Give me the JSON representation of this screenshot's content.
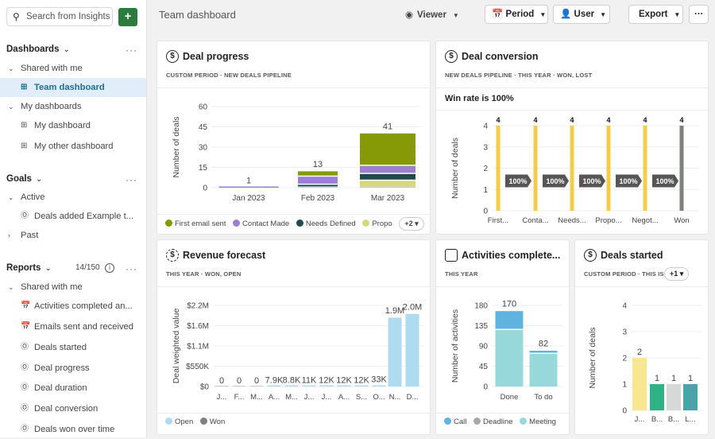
{
  "sidebar": {
    "search_placeholder": "Search from Insights",
    "add_label": "+",
    "dashboards": {
      "title": "Dashboards",
      "groups": [
        {
          "label": "Shared with me",
          "items": [
            "Team dashboard"
          ]
        },
        {
          "label": "My dashboards",
          "items": [
            "My dashboard",
            "My other dashboard"
          ]
        }
      ],
      "selected": "Team dashboard"
    },
    "goals": {
      "title": "Goals",
      "active_label": "Active",
      "active_items": [
        "Deals added Example t..."
      ],
      "past_label": "Past"
    },
    "reports": {
      "title": "Reports",
      "count": "14/150",
      "group_label": "Shared with me",
      "items": [
        "Activities completed an...",
        "Emails sent and received",
        "Deals started",
        "Deal progress",
        "Deal duration",
        "Deal conversion",
        "Deals won over time"
      ]
    }
  },
  "topbar": {
    "title": "Team dashboard",
    "viewer": "Viewer",
    "period": "Period",
    "user": "User",
    "export": "Export",
    "more": "···"
  },
  "cards": {
    "deal_progress": {
      "title": "Deal progress",
      "subtitle": "CUSTOM PERIOD  ·  NEW DEALS PIPELINE",
      "legend": [
        "First email sent",
        "Contact Made",
        "Needs Defined",
        "Propo"
      ],
      "more": "+2"
    },
    "deal_conversion": {
      "title": "Deal conversion",
      "subtitle": "NEW DEALS PIPELINE  ·  THIS YEAR  ·  WON, LOST",
      "win_rate": "Win rate is 100%"
    },
    "revenue_forecast": {
      "title": "Revenue forecast",
      "subtitle": "THIS YEAR  ·  WON, OPEN",
      "legend": [
        "Open",
        "Won"
      ]
    },
    "activities": {
      "title": "Activities complete...",
      "subtitle": "THIS YEAR",
      "legend": [
        "Call",
        "Deadline",
        "Meeting"
      ]
    },
    "deals_started": {
      "title": "Deals started",
      "subtitle": "CUSTOM PERIOD  ·  THIS IS",
      "more": "+1"
    }
  },
  "colors": {
    "accent": "#2d7a3e",
    "selected_bg": "#e1eefa",
    "selected_text": "#1e6b91"
  },
  "chart_data": [
    {
      "id": "deal_progress",
      "type": "bar",
      "stacked": true,
      "ylabel": "Number of deals",
      "ylim": [
        0,
        60
      ],
      "yticks": [
        [
          0,
          "0"
        ],
        [
          15,
          "15"
        ],
        [
          30,
          "30"
        ],
        [
          45,
          "45"
        ],
        [
          60,
          "60"
        ]
      ],
      "categories": [
        "Jan 2023",
        "Feb 2023",
        "Mar 2023"
      ],
      "totals": [
        "1",
        "13",
        "41"
      ],
      "series": [
        {
          "values": [
            0,
            1,
            1
          ],
          "color": "#c9c9cf"
        },
        {
          "name": "Propo",
          "values": [
            0,
            0,
            5
          ],
          "color": "#d6d97a"
        },
        {
          "name": "Needs Defined",
          "values": [
            0,
            2,
            5
          ],
          "color": "#1f4a4f"
        },
        {
          "name": "Contact Made",
          "values": [
            1,
            6,
            6
          ],
          "color": "#9b7fd1"
        },
        {
          "name": "First email sent",
          "values": [
            0,
            4,
            24
          ],
          "color": "#859a06"
        }
      ],
      "grid": true
    },
    {
      "id": "deal_conversion",
      "type": "bar",
      "ylabel": "Number of deals",
      "ylim": [
        0,
        4
      ],
      "yticks": [
        [
          0,
          "0"
        ],
        [
          1,
          "1"
        ],
        [
          2,
          "2"
        ],
        [
          3,
          "3"
        ],
        [
          4,
          "4"
        ]
      ],
      "categories": [
        "First...",
        "Conta...",
        "Needs...",
        "Propo...",
        "Negot...",
        "Won"
      ],
      "totals": [
        "4",
        "4",
        "4",
        "4",
        "4",
        "4"
      ],
      "series": [
        {
          "values": [
            4,
            4,
            4,
            4,
            4,
            4
          ],
          "colors": [
            "#f5cc4a",
            "#f5cc4a",
            "#f5cc4a",
            "#f5cc4a",
            "#f5cc4a",
            "#7e827f"
          ]
        }
      ],
      "conversion_rates": [
        "100%",
        "100%",
        "100%",
        "100%",
        "100%"
      ],
      "grid": true
    },
    {
      "id": "revenue_forecast",
      "type": "bar",
      "stacked": true,
      "ylabel": "Deal weighted value",
      "ylim": [
        0,
        2200000
      ],
      "yticks": [
        [
          0,
          "$0"
        ],
        [
          550000,
          "$550K"
        ],
        [
          1100000,
          "$1.1M"
        ],
        [
          1650000,
          "$1.6M"
        ],
        [
          2200000,
          "$2.2M"
        ]
      ],
      "categories": [
        "J...",
        "F...",
        "M...",
        "A...",
        "M...",
        "J...",
        "J...",
        "A...",
        "S...",
        "O...",
        "N...",
        "D..."
      ],
      "totals": [
        "0",
        "0",
        "0",
        "7.9K",
        "8.8K",
        "11K",
        "12K",
        "12K",
        "12K",
        "33K",
        "1.9M",
        "2.0M"
      ],
      "series": [
        {
          "name": "Won",
          "values": [
            0,
            0,
            0,
            0,
            0,
            0,
            0,
            0,
            0,
            0,
            0,
            0
          ],
          "color": "#7e827f"
        },
        {
          "name": "Open",
          "values": [
            0,
            0,
            0,
            7900,
            8800,
            11000,
            12000,
            12000,
            12000,
            33000,
            1900000,
            2000000
          ],
          "color": "#aedbf0"
        }
      ],
      "grid": true
    },
    {
      "id": "activities",
      "type": "bar",
      "stacked": true,
      "ylabel": "Number of activities",
      "ylim": [
        0,
        180
      ],
      "yticks": [
        [
          0,
          "0"
        ],
        [
          45,
          "45"
        ],
        [
          90,
          "90"
        ],
        [
          135,
          "135"
        ],
        [
          180,
          "180"
        ]
      ],
      "categories": [
        "Done",
        "To do"
      ],
      "totals": [
        "170",
        "82"
      ],
      "series": [
        {
          "name": "Meeting",
          "values": [
            128,
            75
          ],
          "color": "#97d8da"
        },
        {
          "name": "Deadline",
          "values": [
            0,
            0
          ],
          "color": "#a9a9a9"
        },
        {
          "name": "Call",
          "values": [
            42,
            7
          ],
          "color": "#5eb3df"
        }
      ],
      "grid": true
    },
    {
      "id": "deals_started",
      "type": "bar",
      "ylabel": "Number of deals",
      "ylim": [
        0,
        4
      ],
      "yticks": [
        [
          0,
          "0"
        ],
        [
          1,
          "1"
        ],
        [
          2,
          "2"
        ],
        [
          3,
          "3"
        ],
        [
          4,
          "4"
        ]
      ],
      "categories": [
        "J...",
        "B...",
        "B...",
        "L..."
      ],
      "totals": [
        "2",
        "1",
        "1",
        "1"
      ],
      "series": [
        {
          "values": [
            2,
            1,
            1,
            1
          ],
          "colors": [
            "#f7e793",
            "#2fb386",
            "#d5dad8",
            "#4aa3a8"
          ]
        }
      ],
      "grid": true
    }
  ]
}
